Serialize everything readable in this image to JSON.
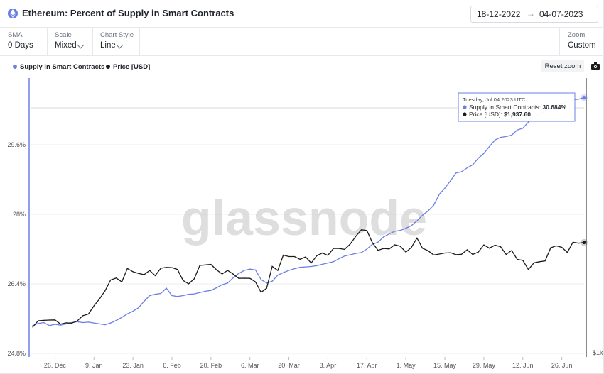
{
  "header": {
    "title": "Ethereum: Percent of Supply in Smart Contracts",
    "date_from": "18-12-2022",
    "date_arrow": "→",
    "date_to": "04-07-2023"
  },
  "controls": {
    "sma": {
      "label": "SMA",
      "value": "0 Days"
    },
    "scale": {
      "label": "Scale",
      "value": "Mixed"
    },
    "chart_style": {
      "label": "Chart Style",
      "value": "Line"
    },
    "zoom": {
      "label": "Zoom",
      "value": "Custom"
    }
  },
  "toolbar": {
    "reset_zoom": "Reset zoom"
  },
  "tooltip": {
    "date": "Tuesday, Jul 04 2023 UTC",
    "supply_label": "Supply in Smart Contracts:",
    "supply_value": "30.684%",
    "price_label": "Price [USD]:",
    "price_value": "$1,937.60"
  },
  "watermark": "glassnode",
  "colors": {
    "supply": "#6c7fe6",
    "price": "#1a1a1a",
    "grid": "#ececec"
  },
  "chart_data": {
    "type": "line",
    "x_tick_labels": [
      "26. Dec",
      "9. Jan",
      "23. Jan",
      "6. Feb",
      "20. Feb",
      "6. Mar",
      "20. Mar",
      "3. Apr",
      "17. Apr",
      "1. May",
      "15. May",
      "29. May",
      "12. Jun",
      "26. Jun"
    ],
    "y_tick_labels": [
      "24.8%",
      "26.4%",
      "28%",
      "29.6%"
    ],
    "ylim": [
      24.8,
      30.8
    ],
    "right_axis_label": "$1k",
    "x_range": [
      "2022-12-18",
      "2023-07-04"
    ],
    "series": [
      {
        "name": "Supply in Smart Contracts",
        "unit": "%",
        "axis": "left",
        "points": [
          [
            "2022-12-18",
            25.44
          ],
          [
            "2022-12-20",
            25.49
          ],
          [
            "2022-12-22",
            25.51
          ],
          [
            "2022-12-24",
            25.44
          ],
          [
            "2022-12-26",
            25.47
          ],
          [
            "2022-12-28",
            25.45
          ],
          [
            "2022-12-30",
            25.48
          ],
          [
            "2023-01-01",
            25.51
          ],
          [
            "2023-01-03",
            25.53
          ],
          [
            "2023-01-05",
            25.51
          ],
          [
            "2023-01-07",
            25.52
          ],
          [
            "2023-01-09",
            25.5
          ],
          [
            "2023-01-11",
            25.48
          ],
          [
            "2023-01-13",
            25.46
          ],
          [
            "2023-01-15",
            25.5
          ],
          [
            "2023-01-17",
            25.56
          ],
          [
            "2023-01-19",
            25.63
          ],
          [
            "2023-01-21",
            25.71
          ],
          [
            "2023-01-23",
            25.77
          ],
          [
            "2023-01-25",
            25.85
          ],
          [
            "2023-01-27",
            26.0
          ],
          [
            "2023-01-29",
            26.13
          ],
          [
            "2023-01-31",
            26.16
          ],
          [
            "2023-02-02",
            26.18
          ],
          [
            "2023-02-04",
            26.3
          ],
          [
            "2023-02-06",
            26.13
          ],
          [
            "2023-02-08",
            26.11
          ],
          [
            "2023-02-10",
            26.13
          ],
          [
            "2023-02-12",
            26.16
          ],
          [
            "2023-02-14",
            26.17
          ],
          [
            "2023-02-16",
            26.2
          ],
          [
            "2023-02-18",
            26.23
          ],
          [
            "2023-02-20",
            26.25
          ],
          [
            "2023-02-22",
            26.31
          ],
          [
            "2023-02-24",
            26.38
          ],
          [
            "2023-02-26",
            26.42
          ],
          [
            "2023-02-28",
            26.54
          ],
          [
            "2023-03-02",
            26.64
          ],
          [
            "2023-03-04",
            26.71
          ],
          [
            "2023-03-06",
            26.74
          ],
          [
            "2023-03-08",
            26.72
          ],
          [
            "2023-03-10",
            26.5
          ],
          [
            "2023-03-12",
            26.42
          ],
          [
            "2023-03-14",
            26.46
          ],
          [
            "2023-03-16",
            26.6
          ],
          [
            "2023-03-18",
            26.66
          ],
          [
            "2023-03-20",
            26.71
          ],
          [
            "2023-03-22",
            26.75
          ],
          [
            "2023-03-24",
            26.78
          ],
          [
            "2023-03-26",
            26.79
          ],
          [
            "2023-03-28",
            26.8
          ],
          [
            "2023-03-30",
            26.82
          ],
          [
            "2023-04-01",
            26.85
          ],
          [
            "2023-04-03",
            26.88
          ],
          [
            "2023-04-05",
            26.91
          ],
          [
            "2023-04-07",
            26.98
          ],
          [
            "2023-04-09",
            27.04
          ],
          [
            "2023-04-11",
            27.07
          ],
          [
            "2023-04-13",
            27.1
          ],
          [
            "2023-04-15",
            27.12
          ],
          [
            "2023-04-17",
            27.2
          ],
          [
            "2023-04-19",
            27.31
          ],
          [
            "2023-04-21",
            27.36
          ],
          [
            "2023-04-23",
            27.48
          ],
          [
            "2023-04-25",
            27.55
          ],
          [
            "2023-04-27",
            27.61
          ],
          [
            "2023-04-29",
            27.63
          ],
          [
            "2023-05-01",
            27.68
          ],
          [
            "2023-05-03",
            27.74
          ],
          [
            "2023-05-05",
            27.85
          ],
          [
            "2023-05-07",
            27.98
          ],
          [
            "2023-05-09",
            28.08
          ],
          [
            "2023-05-11",
            28.21
          ],
          [
            "2023-05-13",
            28.46
          ],
          [
            "2023-05-15",
            28.6
          ],
          [
            "2023-05-17",
            28.77
          ],
          [
            "2023-05-19",
            28.95
          ],
          [
            "2023-05-21",
            28.98
          ],
          [
            "2023-05-23",
            29.07
          ],
          [
            "2023-05-25",
            29.14
          ],
          [
            "2023-05-27",
            29.29
          ],
          [
            "2023-05-29",
            29.4
          ],
          [
            "2023-05-31",
            29.56
          ],
          [
            "2023-06-02",
            29.71
          ],
          [
            "2023-06-04",
            29.77
          ],
          [
            "2023-06-06",
            29.79
          ],
          [
            "2023-06-08",
            29.82
          ],
          [
            "2023-06-10",
            29.94
          ],
          [
            "2023-06-12",
            29.98
          ],
          [
            "2023-06-14",
            30.12
          ],
          [
            "2023-06-16",
            30.22
          ],
          [
            "2023-06-18",
            30.3
          ],
          [
            "2023-06-20",
            30.38
          ],
          [
            "2023-06-22",
            30.44
          ],
          [
            "2023-06-24",
            30.51
          ],
          [
            "2023-06-26",
            30.55
          ],
          [
            "2023-06-28",
            30.59
          ],
          [
            "2023-06-30",
            30.63
          ],
          [
            "2023-07-02",
            30.65
          ],
          [
            "2023-07-04",
            30.684
          ]
        ]
      },
      {
        "name": "Price [USD]",
        "unit": "USD",
        "axis": "right",
        "points": [
          [
            "2022-12-18",
            1170
          ],
          [
            "2022-12-20",
            1215
          ],
          [
            "2022-12-22",
            1218
          ],
          [
            "2022-12-24",
            1220
          ],
          [
            "2022-12-26",
            1221
          ],
          [
            "2022-12-28",
            1191
          ],
          [
            "2022-12-30",
            1200
          ],
          [
            "2023-01-01",
            1198
          ],
          [
            "2023-01-03",
            1214
          ],
          [
            "2023-01-05",
            1252
          ],
          [
            "2023-01-07",
            1265
          ],
          [
            "2023-01-09",
            1328
          ],
          [
            "2023-01-11",
            1385
          ],
          [
            "2023-01-13",
            1453
          ],
          [
            "2023-01-15",
            1550
          ],
          [
            "2023-01-17",
            1568
          ],
          [
            "2023-01-19",
            1532
          ],
          [
            "2023-01-21",
            1660
          ],
          [
            "2023-01-23",
            1628
          ],
          [
            "2023-01-25",
            1612
          ],
          [
            "2023-01-27",
            1600
          ],
          [
            "2023-01-29",
            1640
          ],
          [
            "2023-01-31",
            1590
          ],
          [
            "2023-02-02",
            1662
          ],
          [
            "2023-02-04",
            1670
          ],
          [
            "2023-02-06",
            1668
          ],
          [
            "2023-02-08",
            1650
          ],
          [
            "2023-02-10",
            1545
          ],
          [
            "2023-02-12",
            1515
          ],
          [
            "2023-02-14",
            1560
          ],
          [
            "2023-02-16",
            1690
          ],
          [
            "2023-02-18",
            1695
          ],
          [
            "2023-02-20",
            1700
          ],
          [
            "2023-02-22",
            1647
          ],
          [
            "2023-02-24",
            1606
          ],
          [
            "2023-02-26",
            1640
          ],
          [
            "2023-02-28",
            1605
          ],
          [
            "2023-03-02",
            1565
          ],
          [
            "2023-03-04",
            1566
          ],
          [
            "2023-03-06",
            1565
          ],
          [
            "2023-03-08",
            1532
          ],
          [
            "2023-03-10",
            1440
          ],
          [
            "2023-03-12",
            1475
          ],
          [
            "2023-03-14",
            1680
          ],
          [
            "2023-03-16",
            1640
          ],
          [
            "2023-03-18",
            1797
          ],
          [
            "2023-03-20",
            1782
          ],
          [
            "2023-03-22",
            1782
          ],
          [
            "2023-03-24",
            1753
          ],
          [
            "2023-03-26",
            1778
          ],
          [
            "2023-03-28",
            1715
          ],
          [
            "2023-03-30",
            1790
          ],
          [
            "2023-04-01",
            1820
          ],
          [
            "2023-04-03",
            1795
          ],
          [
            "2023-04-05",
            1870
          ],
          [
            "2023-04-07",
            1870
          ],
          [
            "2023-04-09",
            1860
          ],
          [
            "2023-04-11",
            1919
          ],
          [
            "2023-04-13",
            2010
          ],
          [
            "2023-04-15",
            2090
          ],
          [
            "2023-04-17",
            2082
          ],
          [
            "2023-04-19",
            1935
          ],
          [
            "2023-04-21",
            1850
          ],
          [
            "2023-04-23",
            1870
          ],
          [
            "2023-04-25",
            1865
          ],
          [
            "2023-04-27",
            1911
          ],
          [
            "2023-04-29",
            1895
          ],
          [
            "2023-05-01",
            1830
          ],
          [
            "2023-05-03",
            1882
          ],
          [
            "2023-05-05",
            1990
          ],
          [
            "2023-05-07",
            1872
          ],
          [
            "2023-05-09",
            1845
          ],
          [
            "2023-05-11",
            1799
          ],
          [
            "2023-05-13",
            1809
          ],
          [
            "2023-05-15",
            1820
          ],
          [
            "2023-05-17",
            1823
          ],
          [
            "2023-05-19",
            1802
          ],
          [
            "2023-05-21",
            1806
          ],
          [
            "2023-05-23",
            1855
          ],
          [
            "2023-05-25",
            1805
          ],
          [
            "2023-05-27",
            1830
          ],
          [
            "2023-05-29",
            1910
          ],
          [
            "2023-05-31",
            1873
          ],
          [
            "2023-06-02",
            1907
          ],
          [
            "2023-06-04",
            1890
          ],
          [
            "2023-06-06",
            1805
          ],
          [
            "2023-06-08",
            1848
          ],
          [
            "2023-06-10",
            1752
          ],
          [
            "2023-06-12",
            1742
          ],
          [
            "2023-06-14",
            1649
          ],
          [
            "2023-06-16",
            1717
          ],
          [
            "2023-06-18",
            1728
          ],
          [
            "2023-06-20",
            1736
          ],
          [
            "2023-06-22",
            1877
          ],
          [
            "2023-06-24",
            1900
          ],
          [
            "2023-06-26",
            1883
          ],
          [
            "2023-06-28",
            1826
          ],
          [
            "2023-06-30",
            1941
          ],
          [
            "2023-07-02",
            1930
          ],
          [
            "2023-07-04",
            1937.6
          ]
        ]
      }
    ]
  }
}
